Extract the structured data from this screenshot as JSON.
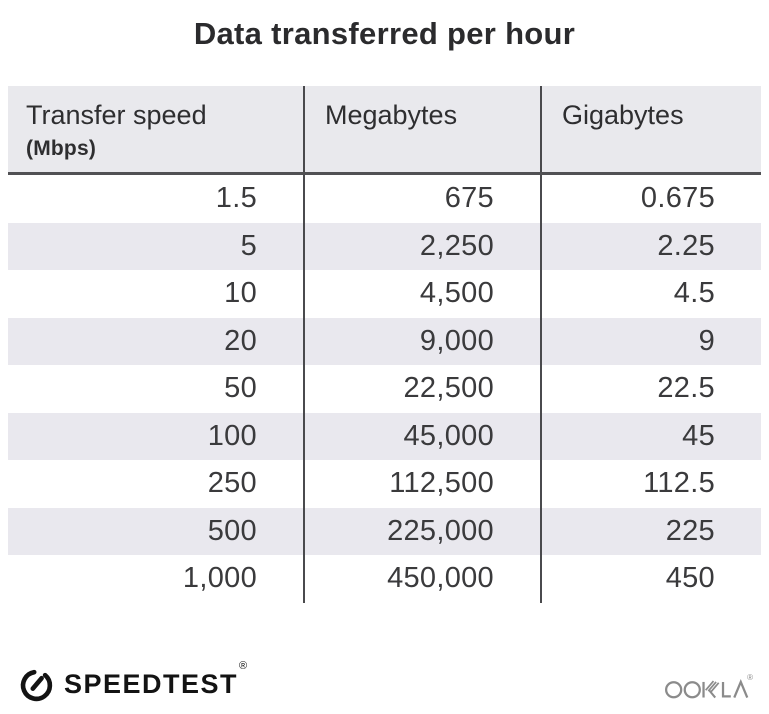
{
  "title": "Data transferred per hour",
  "table": {
    "header": {
      "col1_label": "Transfer speed",
      "col1_unit": "(Mbps)",
      "col2_label": "Megabytes",
      "col3_label": "Gigabytes"
    }
  },
  "chart_data": {
    "type": "table",
    "title": "Data transferred per hour",
    "columns": [
      "Transfer speed (Mbps)",
      "Megabytes",
      "Gigabytes"
    ],
    "rows": [
      [
        "1.5",
        "675",
        "0.675"
      ],
      [
        "5",
        "2,250",
        "2.25"
      ],
      [
        "10",
        "4,500",
        "4.5"
      ],
      [
        "20",
        "9,000",
        "9"
      ],
      [
        "50",
        "22,500",
        "22.5"
      ],
      [
        "100",
        "45,000",
        "45"
      ],
      [
        "250",
        "112,500",
        "112.5"
      ],
      [
        "500",
        "225,000",
        "225"
      ],
      [
        "1,000",
        "450,000",
        "450"
      ]
    ],
    "layout_hints": {
      "value_alignment": "right",
      "striped_rows": "even rows shaded",
      "stripe_color": "#e9e8ee",
      "header_bg": "#e9e9ed",
      "divider_color": "#4a4a4d"
    }
  },
  "footer": {
    "speedtest_label": "SPEEDTEST",
    "speedtest_reg": "®",
    "ookla_label": "OOKLA",
    "ookla_reg": "®"
  },
  "colors": {
    "title_text": "#2b2b2d",
    "body_text": "#3a3a3c",
    "header_bg": "#e9e9ed",
    "stripe_bg": "#e9e8ee",
    "divider": "#4a4a4d",
    "header_rule": "#515154",
    "logo_black": "#131313",
    "ookla_gray": "#8b8b8b"
  }
}
